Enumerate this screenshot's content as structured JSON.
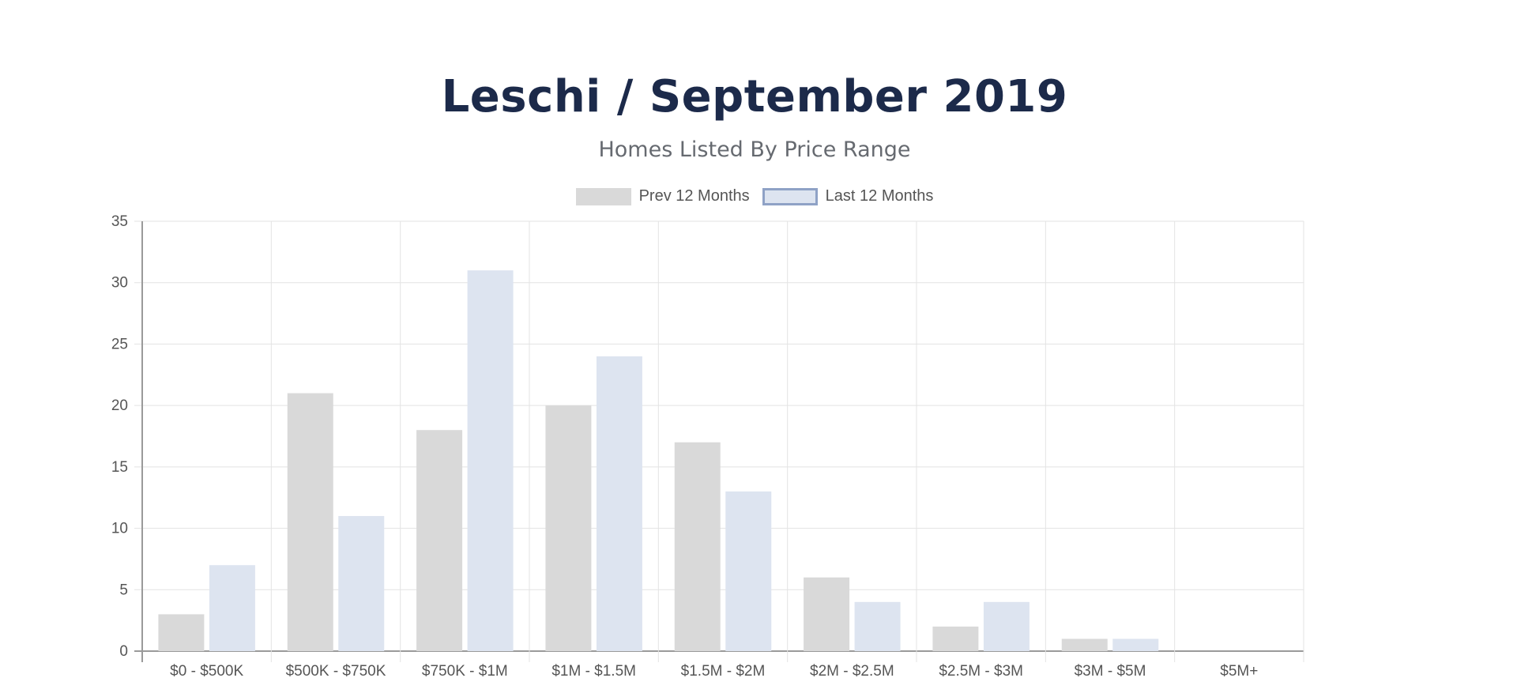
{
  "chart_data": {
    "type": "bar",
    "title": "Leschi / September 2019",
    "subtitle": "Homes Listed By Price Range",
    "categories": [
      "$0 - $500K",
      "$500K - $750K",
      "$750K - $1M",
      "$1M - $1.5M",
      "$1.5M - $2M",
      "$2M - $2.5M",
      "$2.5M - $3M",
      "$3M - $5M",
      "$5M+"
    ],
    "series": [
      {
        "name": "Prev 12 Months",
        "values": [
          3,
          21,
          18,
          20,
          17,
          6,
          2,
          1,
          0
        ],
        "color": "#d9d9d9",
        "border": "#d9d9d9"
      },
      {
        "name": "Last 12 Months",
        "values": [
          7,
          11,
          31,
          24,
          13,
          4,
          4,
          1,
          0
        ],
        "color": "#dde4f0",
        "border": "#8fa2c6"
      }
    ],
    "ylim": [
      0,
      35
    ],
    "yticks": [
      0,
      5,
      10,
      15,
      20,
      25,
      30,
      35
    ],
    "grid": true,
    "legend_position": "top"
  }
}
